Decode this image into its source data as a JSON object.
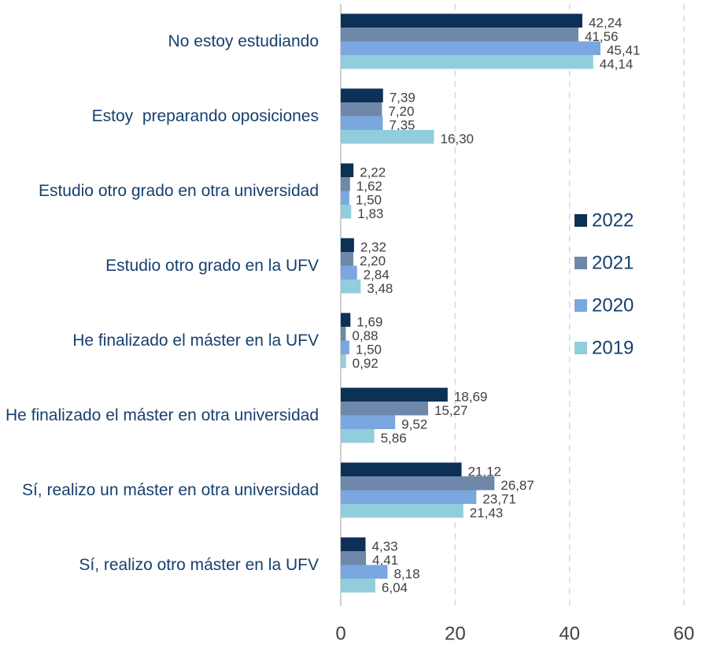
{
  "chart_data": {
    "type": "hbar",
    "categories": [
      "No estoy estudiando",
      "Estoy  preparando oposiciones",
      "Estudio otro grado en otra universidad",
      "Estudio otro grado en la UFV",
      "He finalizado el máster en la UFV",
      "He finalizado el máster en otra universidad",
      "Sí, realizo un máster en otra universidad",
      "Sí, realizo otro máster en la UFV"
    ],
    "series": [
      {
        "name": "2022",
        "color": "#0d3057",
        "values": [
          42.24,
          7.39,
          2.22,
          2.32,
          1.69,
          18.69,
          21.12,
          4.33
        ],
        "value_labels": [
          "42,24",
          "7,39",
          "2,22",
          "2,32",
          "1,69",
          "18,69",
          "21,12",
          "4,33"
        ]
      },
      {
        "name": "2021",
        "color": "#6f87a8",
        "values": [
          41.56,
          7.2,
          1.62,
          2.2,
          0.88,
          15.27,
          26.87,
          4.41
        ],
        "value_labels": [
          "41,56",
          "7,20",
          "1,62",
          "2,20",
          "0,88",
          "15,27",
          "26,87",
          "4,41"
        ]
      },
      {
        "name": "2020",
        "color": "#7ba7e0",
        "values": [
          45.41,
          7.35,
          1.5,
          2.84,
          1.5,
          9.52,
          23.71,
          8.18
        ],
        "value_labels": [
          "45,41",
          "7,35",
          "1,50",
          "2,84",
          "1,50",
          "9,52",
          "23,71",
          "8,18"
        ]
      },
      {
        "name": "2019",
        "color": "#92cddc",
        "values": [
          44.14,
          16.3,
          1.83,
          3.48,
          0.92,
          5.86,
          21.43,
          6.04
        ],
        "value_labels": [
          "44,14",
          "16,30",
          "1,83",
          "3,48",
          "0,92",
          "5,86",
          "21,43",
          "6,04"
        ]
      }
    ],
    "xlim": [
      0,
      60
    ],
    "xticks": [
      0,
      20,
      40,
      60
    ],
    "grid": true,
    "legend": "right"
  }
}
